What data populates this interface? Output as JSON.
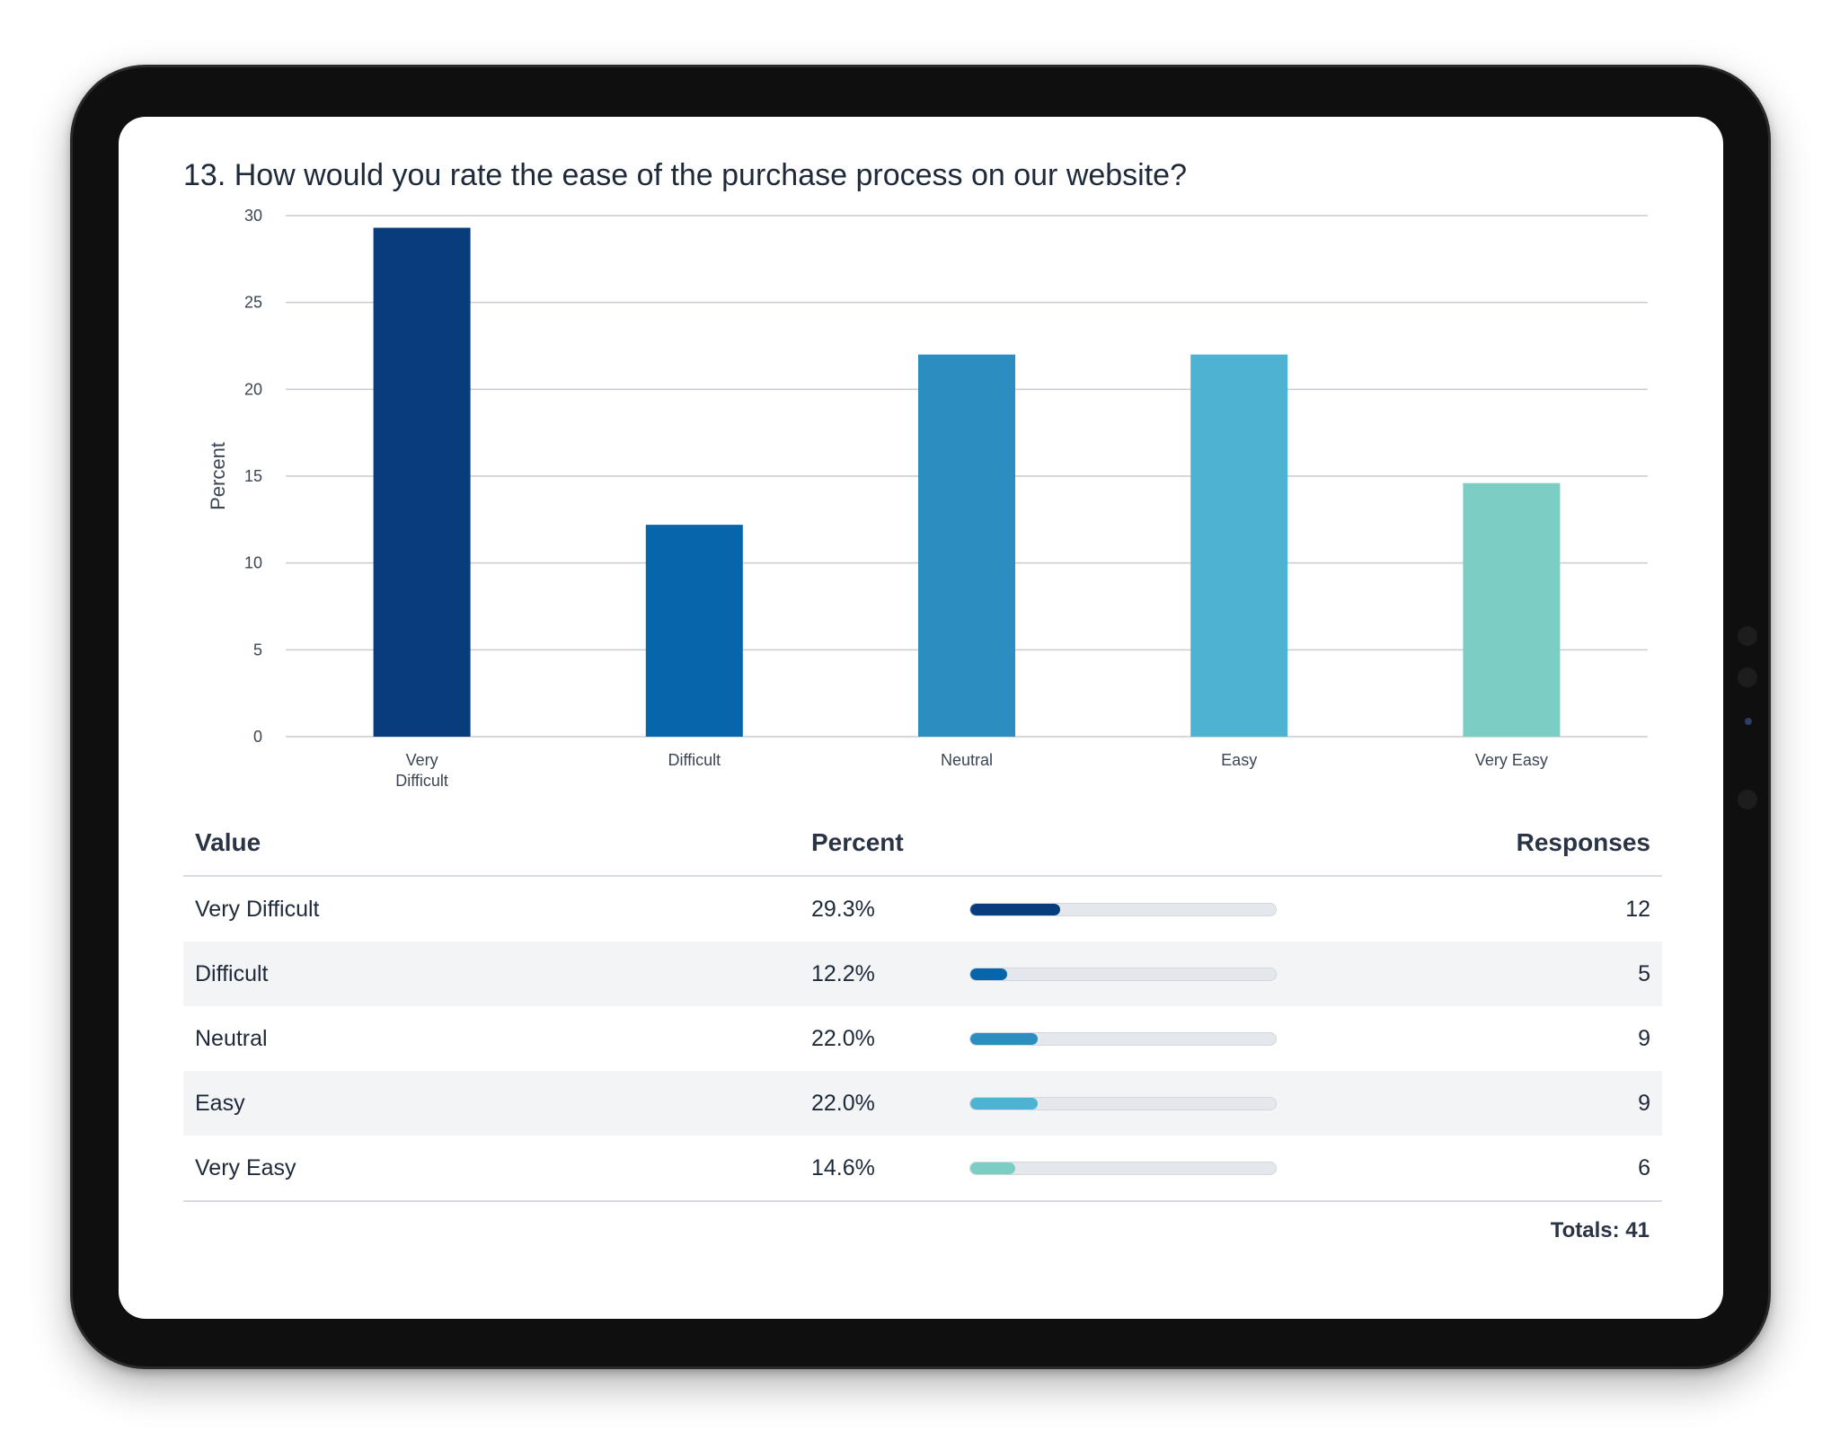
{
  "question_title": "13. How would you rate the ease of the purchase process on our website?",
  "chart_data": {
    "type": "bar",
    "categories": [
      "Very Difficult",
      "Difficult",
      "Neutral",
      "Easy",
      "Very Easy"
    ],
    "category_lines": [
      [
        "Very",
        "Difficult"
      ],
      [
        "Difficult"
      ],
      [
        "Neutral"
      ],
      [
        "Easy"
      ],
      [
        "Very Easy"
      ]
    ],
    "values": [
      29.3,
      12.2,
      22.0,
      22.0,
      14.6
    ],
    "colors": [
      "#073d7b",
      "#0766ab",
      "#2c8ec0",
      "#4eb2d3",
      "#7ccdc4"
    ],
    "ylabel": "Percent",
    "xlabel": "",
    "ylim": [
      0,
      30
    ],
    "yticks": [
      0,
      5,
      10,
      15,
      20,
      25,
      30
    ],
    "grid": true
  },
  "table": {
    "headers": {
      "value": "Value",
      "percent": "Percent",
      "responses": "Responses"
    },
    "rows": [
      {
        "value": "Very Difficult",
        "percent": "29.3%",
        "percent_value": 29.3,
        "responses": "12",
        "color": "#073d7b"
      },
      {
        "value": "Difficult",
        "percent": "12.2%",
        "percent_value": 12.2,
        "responses": "5",
        "color": "#0766ab"
      },
      {
        "value": "Neutral",
        "percent": "22.0%",
        "percent_value": 22.0,
        "responses": "9",
        "color": "#2c8ec0"
      },
      {
        "value": "Easy",
        "percent": "22.0%",
        "percent_value": 22.0,
        "responses": "9",
        "color": "#4eb2d3"
      },
      {
        "value": "Very Easy",
        "percent": "14.6%",
        "percent_value": 14.6,
        "responses": "6",
        "color": "#7ccdc4"
      }
    ],
    "totals": "Totals: 41"
  }
}
